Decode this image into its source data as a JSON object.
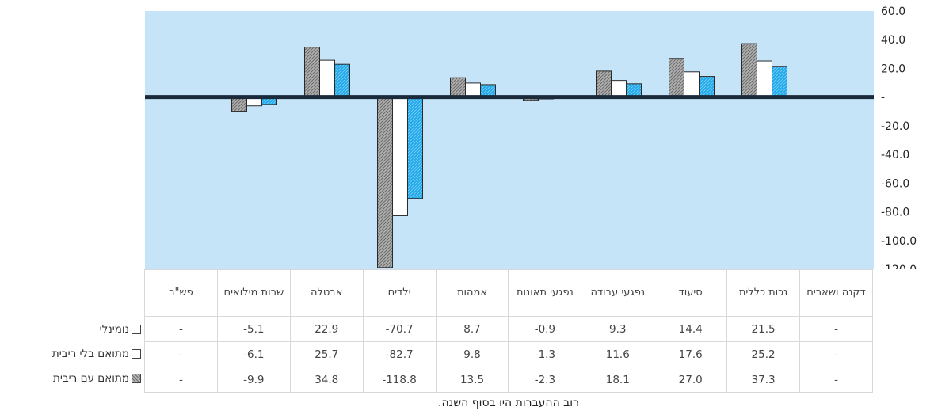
{
  "chart_data": {
    "type": "bar",
    "categories": [
      "דקנה ושארים",
      "נכות כללית",
      "סיעוד",
      "נפגעי עבודה",
      "נפגעי תאונות",
      "אמהות",
      "ילדים",
      "אבטלה",
      "שרות מילואים",
      "פש\"ר"
    ],
    "series": [
      {
        "name": "נומינלי",
        "values": [
          null,
          21.5,
          14.4,
          9.3,
          -0.9,
          8.7,
          -70.7,
          22.9,
          -5.1,
          null
        ]
      },
      {
        "name": "מתואם בלי ריבית",
        "values": [
          null,
          25.2,
          17.6,
          11.6,
          -1.3,
          9.8,
          -82.7,
          25.7,
          -6.1,
          null
        ]
      },
      {
        "name": "מתואם עם ריבית",
        "values": [
          null,
          37.3,
          27.0,
          18.1,
          -2.3,
          13.5,
          -118.8,
          34.8,
          -9.9,
          null
        ]
      }
    ],
    "ylim": [
      -120,
      60
    ],
    "yticks": [
      "60.0",
      "40.0",
      "20.0",
      "-",
      "-20.0",
      "-40.0",
      "-60.0",
      "-80.0",
      "-100.0",
      "-120.0"
    ],
    "grid": false,
    "legend": "table-left"
  },
  "colors": {
    "plot_bg": "#c6e4f7",
    "series": [
      "#00a0e6",
      "#ffffff",
      "#a8a8a8"
    ],
    "zero_line": "#1a2a3a"
  },
  "table": {
    "headers": [
      "פש\"ר",
      "שרות מילואים",
      "אבטלה",
      "ילדים",
      "אמהות",
      "נפגעי תאונות",
      "נפגעי עבודה",
      "סיעוד",
      "נכות כללית",
      "דקנה ושארים"
    ],
    "rows": [
      {
        "label": "נומינלי",
        "cells": [
          "-",
          "-5.1",
          "22.9",
          "-70.7",
          "8.7",
          "-0.9",
          "9.3",
          "14.4",
          "21.5",
          "-"
        ]
      },
      {
        "label": "מתואם בלי ריבית",
        "cells": [
          "-",
          "-6.1",
          "25.7",
          "-82.7",
          "9.8",
          "-1.3",
          "11.6",
          "17.6",
          "25.2",
          "-"
        ]
      },
      {
        "label": "מתואם עם ריבית",
        "cells": [
          "-",
          "-9.9",
          "34.8",
          "-118.8",
          "13.5",
          "-2.3",
          "18.1",
          "27.0",
          "37.3",
          "-"
        ]
      }
    ]
  },
  "footnote": "רוב ההעברות היו בסוף השנה."
}
